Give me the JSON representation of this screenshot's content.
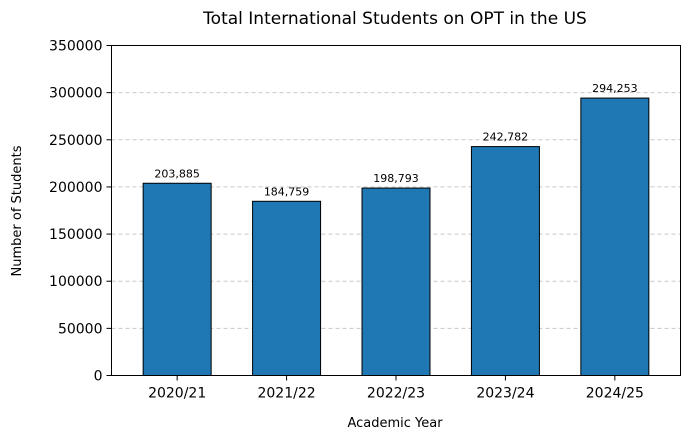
{
  "chart_data": {
    "type": "bar",
    "title": "Total International Students on OPT in the US",
    "xlabel": "Academic Year",
    "ylabel": "Number of Students",
    "categories": [
      "2020/21",
      "2021/22",
      "2022/23",
      "2023/24",
      "2024/25"
    ],
    "values": [
      203885,
      184759,
      198793,
      242782,
      294253
    ],
    "data_labels": [
      "203,885",
      "184,759",
      "198,793",
      "242,782",
      "294,253"
    ],
    "yticks": [
      "0",
      "50000",
      "100000",
      "150000",
      "200000",
      "250000",
      "300000",
      "350000"
    ],
    "ylim": [
      0,
      350000
    ],
    "grid": "y-dashed",
    "bar_color": "#1f77b4",
    "legend": "none"
  }
}
